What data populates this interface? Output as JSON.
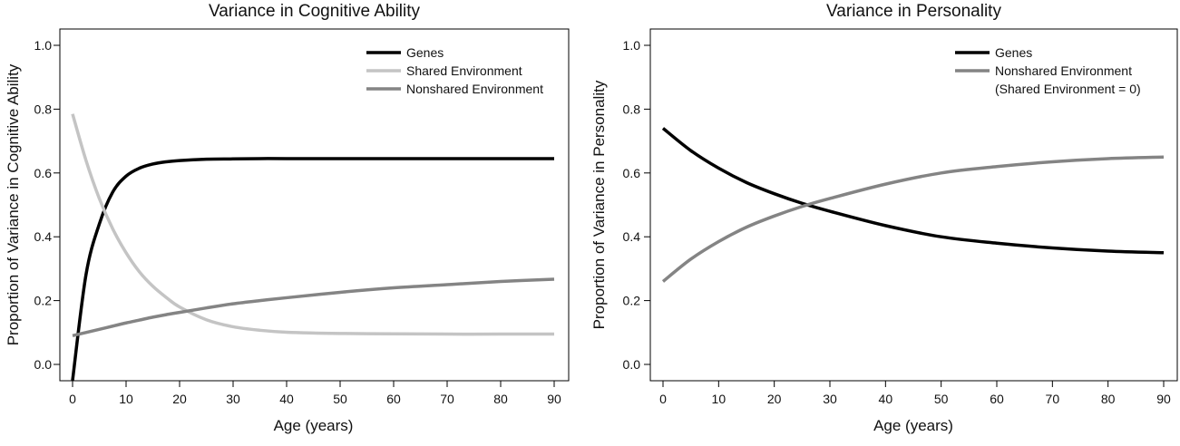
{
  "chart_data": [
    {
      "type": "line",
      "title": "Variance in Cognitive Ability",
      "xlabel": "Age (years)",
      "ylabel": "Proportion of Variance in Cognitive Ability",
      "xlim": [
        0,
        90
      ],
      "ylim": [
        0.0,
        1.0
      ],
      "x_ticks": [
        "0",
        "10",
        "20",
        "30",
        "40",
        "50",
        "60",
        "70",
        "80",
        "90"
      ],
      "y_ticks": [
        "0.0",
        "0.2",
        "0.4",
        "0.6",
        "0.8",
        "1.0"
      ],
      "grid": false,
      "legend_position": "top-right",
      "legend_note": "",
      "x": [
        0,
        2.5,
        5,
        7.5,
        10,
        12.5,
        15,
        17.5,
        20,
        25,
        30,
        35,
        40,
        50,
        60,
        70,
        80,
        90
      ],
      "series": [
        {
          "name": "Genes",
          "color": "#000000",
          "values": [
            -0.05,
            0.28,
            0.44,
            0.54,
            0.59,
            0.615,
            0.628,
            0.635,
            0.639,
            0.643,
            0.644,
            0.645,
            0.645,
            0.645,
            0.645,
            0.645,
            0.645,
            0.645
          ]
        },
        {
          "name": "Shared Environment",
          "color": "#c4c4c4",
          "values": [
            0.785,
            0.64,
            0.52,
            0.425,
            0.35,
            0.29,
            0.245,
            0.21,
            0.18,
            0.14,
            0.118,
            0.107,
            0.101,
            0.097,
            0.096,
            0.095,
            0.095,
            0.095
          ]
        },
        {
          "name": "Nonshared Environment",
          "color": "#848484",
          "values": [
            0.09,
            0.1,
            0.11,
            0.12,
            0.13,
            0.139,
            0.148,
            0.156,
            0.163,
            0.177,
            0.19,
            0.2,
            0.209,
            0.226,
            0.24,
            0.25,
            0.26,
            0.267
          ]
        }
      ]
    },
    {
      "type": "line",
      "title": "Variance in Personality",
      "xlabel": "Age (years)",
      "ylabel": "Proportion of Variance in Personality",
      "xlim": [
        0,
        90
      ],
      "ylim": [
        0.0,
        1.0
      ],
      "x_ticks": [
        "0",
        "10",
        "20",
        "30",
        "40",
        "50",
        "60",
        "70",
        "80",
        "90"
      ],
      "y_ticks": [
        "0.0",
        "0.2",
        "0.4",
        "0.6",
        "0.8",
        "1.0"
      ],
      "grid": false,
      "legend_position": "top-right",
      "legend_note": "(Shared Environment = 0)",
      "x": [
        0,
        5,
        10,
        15,
        20,
        25,
        30,
        40,
        50,
        60,
        70,
        80,
        90
      ],
      "series": [
        {
          "name": "Genes",
          "color": "#000000",
          "values": [
            0.74,
            0.67,
            0.615,
            0.57,
            0.535,
            0.505,
            0.48,
            0.435,
            0.4,
            0.38,
            0.365,
            0.355,
            0.35
          ]
        },
        {
          "name": "Nonshared Environment",
          "color": "#848484",
          "values": [
            0.26,
            0.33,
            0.385,
            0.43,
            0.465,
            0.495,
            0.52,
            0.565,
            0.6,
            0.62,
            0.635,
            0.645,
            0.65
          ]
        }
      ]
    }
  ]
}
